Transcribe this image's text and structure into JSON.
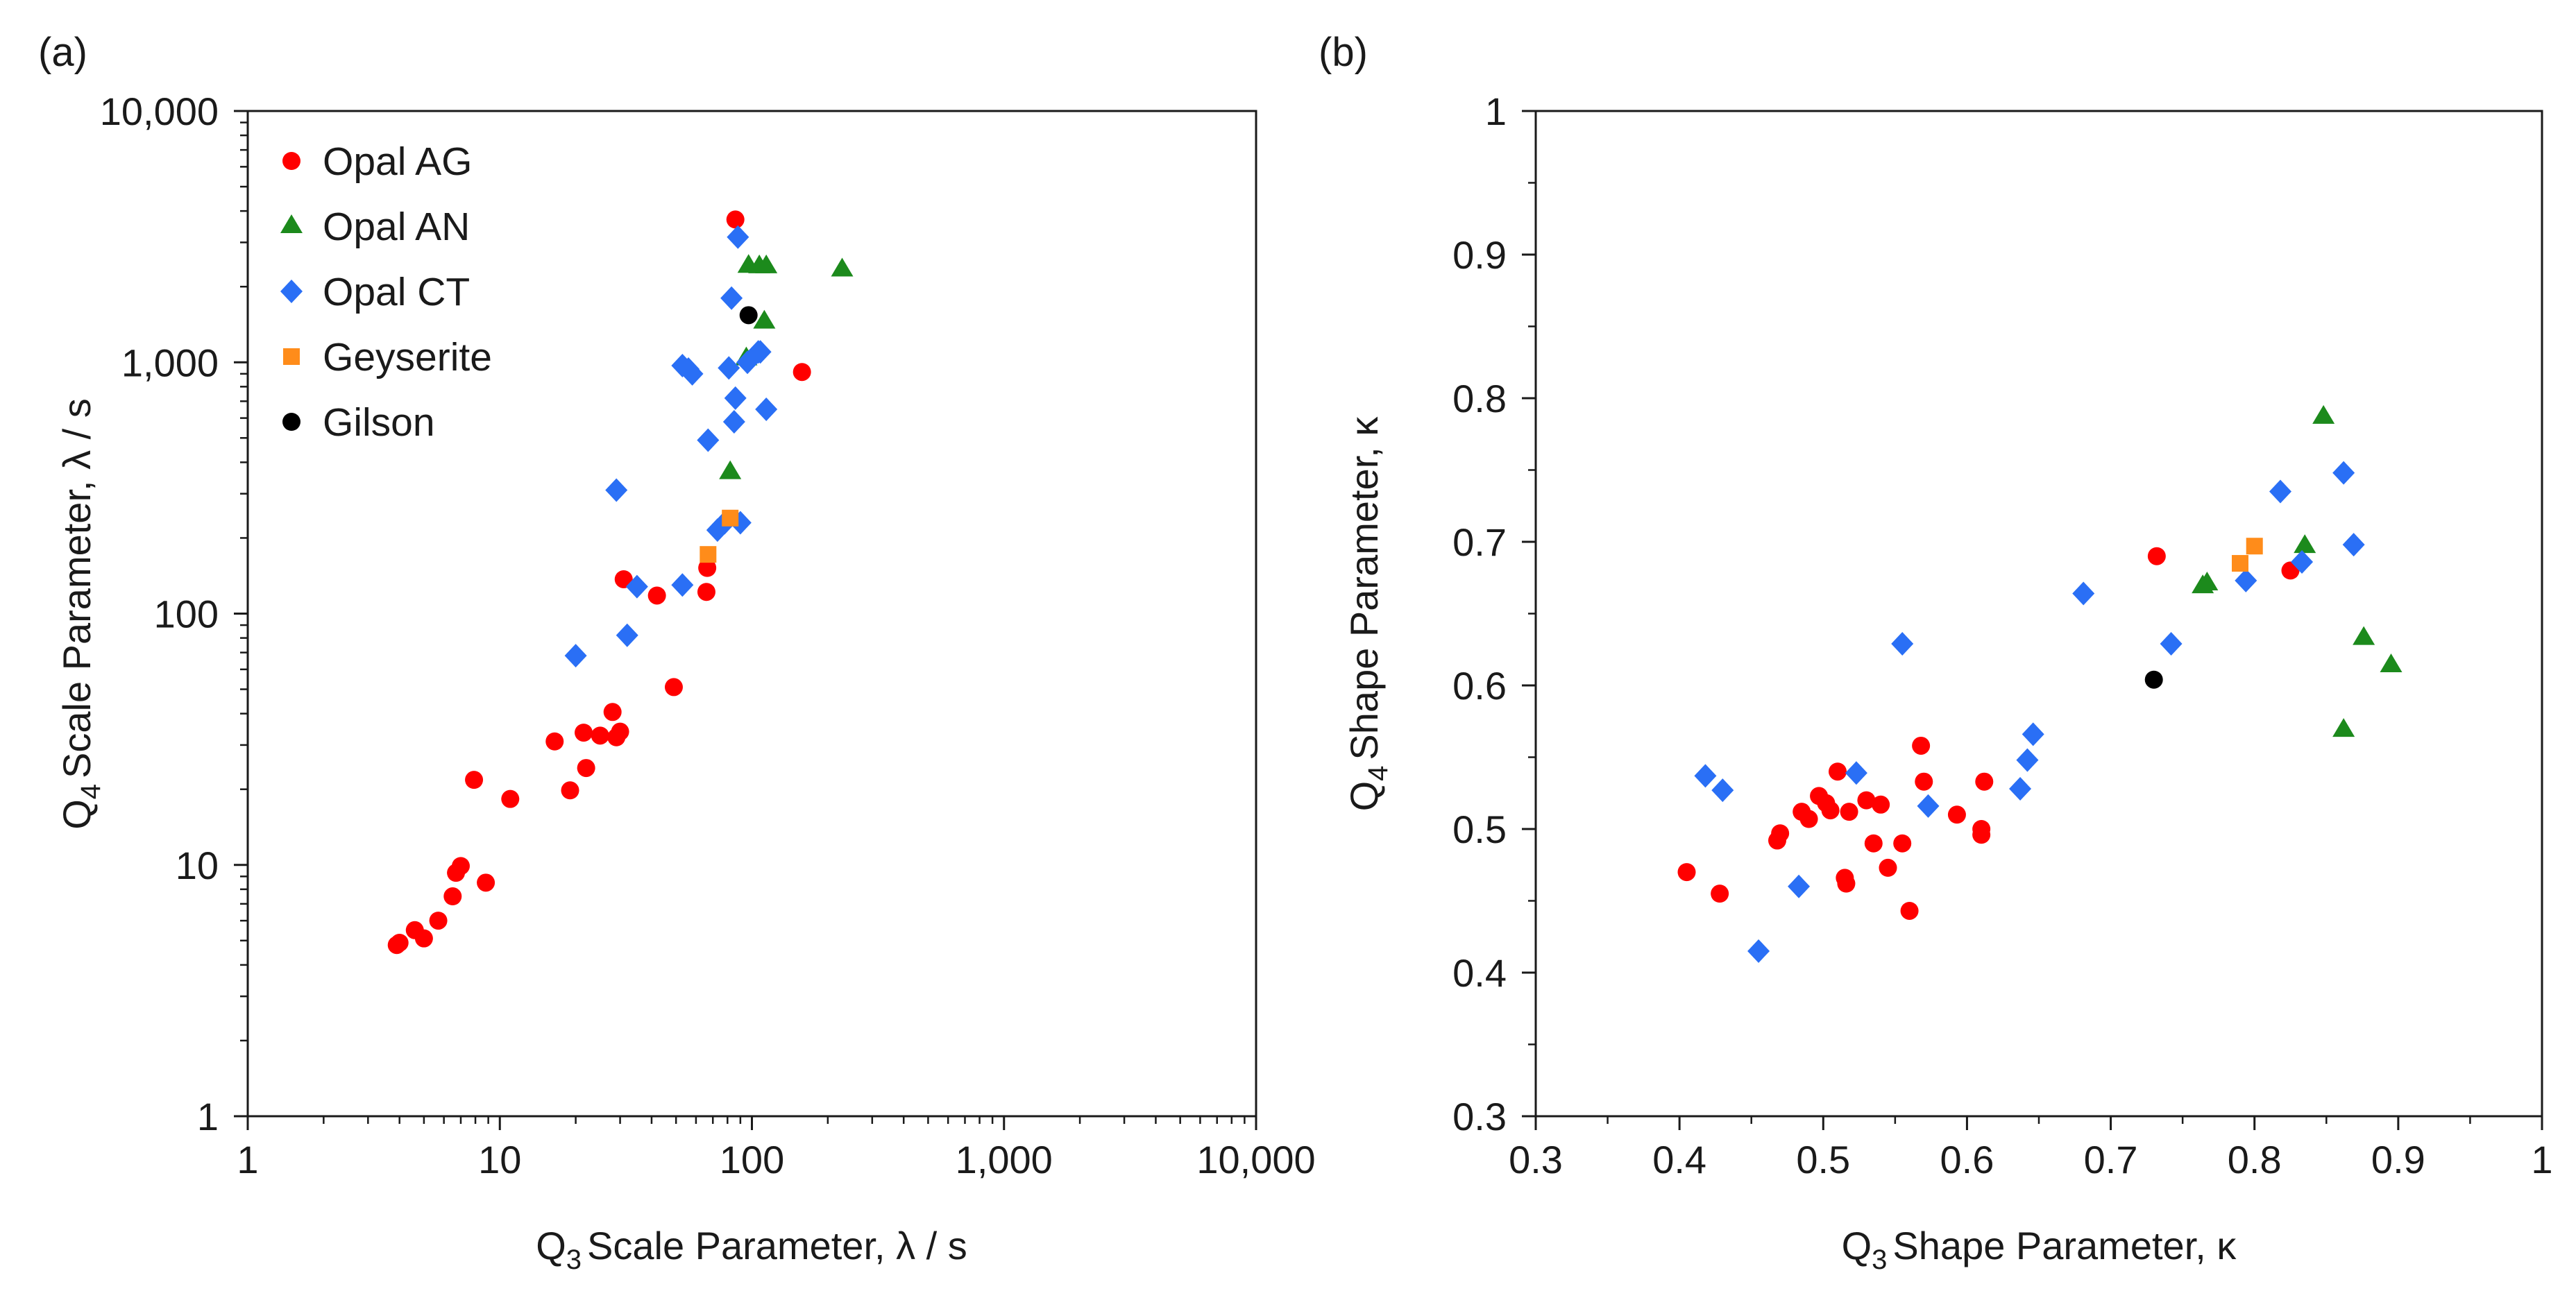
{
  "chart_data": [
    {
      "type": "scatter",
      "panel_label": "(a)",
      "xscale": "log",
      "yscale": "log",
      "xlim": [
        1,
        10000
      ],
      "ylim": [
        1,
        10000
      ],
      "xlabel": {
        "q": "Q",
        "sub": "3",
        "rest": "Scale Parameter, λ / s"
      },
      "ylabel": {
        "q": "Q",
        "sub": "4",
        "rest": "Scale Parameter, λ / s"
      },
      "xticks": [
        {
          "value": 1,
          "label": "1"
        },
        {
          "value": 10,
          "label": "10"
        },
        {
          "value": 100,
          "label": "100"
        },
        {
          "value": 1000,
          "label": "1,000"
        },
        {
          "value": 10000,
          "label": "10,000"
        }
      ],
      "yticks": [
        {
          "value": 1,
          "label": "1"
        },
        {
          "value": 10,
          "label": "10"
        },
        {
          "value": 100,
          "label": "100"
        },
        {
          "value": 1000,
          "label": "1,000"
        },
        {
          "value": 10000,
          "label": "10,000"
        }
      ],
      "legend": {
        "position": "top-left"
      },
      "series": [
        {
          "name": "Opal AG",
          "marker": "circle",
          "color": "#ff0000",
          "x": [
            4.0,
            3.9,
            4.6,
            5.0,
            5.7,
            6.5,
            6.7,
            7.0,
            7.9,
            8.8,
            11,
            16.5,
            19,
            21.5,
            22,
            25,
            28,
            29,
            30,
            31,
            42,
            49,
            66,
            66.5,
            86,
            158
          ],
          "y": [
            4.9,
            4.8,
            5.5,
            5.1,
            6.0,
            7.5,
            9.3,
            9.9,
            21.8,
            8.5,
            18.3,
            31,
            19.8,
            33.6,
            24.3,
            32.7,
            40.6,
            32.2,
            33.9,
            137,
            118,
            51,
            122,
            152,
            3700,
            915
          ]
        },
        {
          "name": "Opal AN",
          "marker": "triangle",
          "color": "#1c8a1c",
          "x": [
            82,
            95,
            97,
            107,
            112,
            114,
            228
          ],
          "y": [
            370,
            1050,
            2450,
            2440,
            1470,
            2440,
            2370
          ]
        },
        {
          "name": "Opal CT",
          "marker": "diamond",
          "color": "#2a6ff5",
          "x": [
            20,
            29,
            32,
            35,
            53,
            53,
            56,
            58,
            67,
            73,
            78,
            81,
            83,
            85,
            86,
            88,
            90,
            96,
            106,
            108,
            114
          ],
          "y": [
            68,
            310,
            82,
            128,
            130,
            970,
            940,
            900,
            490,
            215,
            230,
            950,
            1800,
            580,
            720,
            3150,
            230,
            1000,
            1100,
            1100,
            650
          ]
        },
        {
          "name": "Geyserite",
          "marker": "square",
          "color": "#ff8c1a",
          "x": [
            67,
            82
          ],
          "y": [
            172,
            240
          ]
        },
        {
          "name": "Gilson",
          "marker": "circle",
          "color": "#000000",
          "x": [
            97
          ],
          "y": [
            1540
          ]
        }
      ]
    },
    {
      "type": "scatter",
      "panel_label": "(b)",
      "xscale": "linear",
      "yscale": "linear",
      "xlim": [
        0.3,
        1
      ],
      "ylim": [
        0.3,
        1
      ],
      "xlabel": {
        "q": "Q",
        "sub": "3",
        "rest": "Shape Parameter, κ"
      },
      "ylabel": {
        "q": "Q",
        "sub": "4",
        "rest": "Shape Parameter, κ"
      },
      "xticks": [
        {
          "value": 0.3,
          "label": "0.3"
        },
        {
          "value": 0.4,
          "label": "0.4"
        },
        {
          "value": 0.5,
          "label": "0.5"
        },
        {
          "value": 0.6,
          "label": "0.6"
        },
        {
          "value": 0.7,
          "label": "0.7"
        },
        {
          "value": 0.8,
          "label": "0.8"
        },
        {
          "value": 0.9,
          "label": "0.9"
        },
        {
          "value": 1,
          "label": "1"
        }
      ],
      "yticks": [
        {
          "value": 0.3,
          "label": "0.3"
        },
        {
          "value": 0.4,
          "label": "0.4"
        },
        {
          "value": 0.5,
          "label": "0.5"
        },
        {
          "value": 0.6,
          "label": "0.6"
        },
        {
          "value": 0.7,
          "label": "0.7"
        },
        {
          "value": 0.8,
          "label": "0.8"
        },
        {
          "value": 0.9,
          "label": "0.9"
        },
        {
          "value": 1,
          "label": "1"
        }
      ],
      "series": [
        {
          "name": "Opal AG",
          "marker": "circle",
          "color": "#ff0000",
          "x": [
            0.405,
            0.428,
            0.468,
            0.47,
            0.485,
            0.49,
            0.497,
            0.502,
            0.505,
            0.51,
            0.515,
            0.516,
            0.518,
            0.53,
            0.535,
            0.54,
            0.545,
            0.555,
            0.56,
            0.568,
            0.57,
            0.593,
            0.61,
            0.61,
            0.612,
            0.732,
            0.825
          ],
          "y": [
            0.47,
            0.455,
            0.492,
            0.497,
            0.512,
            0.507,
            0.523,
            0.518,
            0.513,
            0.54,
            0.466,
            0.462,
            0.512,
            0.52,
            0.49,
            0.517,
            0.473,
            0.49,
            0.443,
            0.558,
            0.533,
            0.51,
            0.496,
            0.5,
            0.533,
            0.69,
            0.68
          ]
        },
        {
          "name": "Opal AN",
          "marker": "triangle",
          "color": "#1c8a1c",
          "x": [
            0.764,
            0.767,
            0.835,
            0.848,
            0.862,
            0.876,
            0.895
          ],
          "y": [
            0.67,
            0.672,
            0.698,
            0.788,
            0.57,
            0.634,
            0.615
          ]
        },
        {
          "name": "Opal CT",
          "marker": "diamond",
          "color": "#2a6ff5",
          "x": [
            0.418,
            0.43,
            0.455,
            0.483,
            0.523,
            0.555,
            0.573,
            0.637,
            0.642,
            0.646,
            0.681,
            0.742,
            0.794,
            0.818,
            0.833,
            0.862,
            0.869
          ],
          "y": [
            0.537,
            0.527,
            0.415,
            0.46,
            0.539,
            0.629,
            0.516,
            0.528,
            0.548,
            0.566,
            0.664,
            0.629,
            0.673,
            0.735,
            0.686,
            0.748,
            0.698
          ]
        },
        {
          "name": "Geyserite",
          "marker": "square",
          "color": "#ff8c1a",
          "x": [
            0.79,
            0.8
          ],
          "y": [
            0.685,
            0.697
          ]
        },
        {
          "name": "Gilson",
          "marker": "circle",
          "color": "#000000",
          "x": [
            0.73
          ],
          "y": [
            0.604
          ]
        }
      ]
    }
  ]
}
